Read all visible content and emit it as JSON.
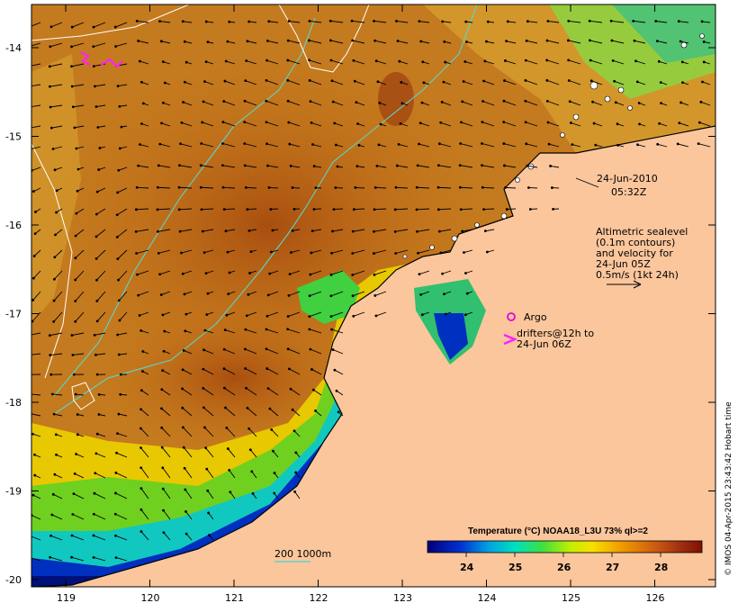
{
  "map": {
    "timestamp_date": "24-Jun-2010",
    "timestamp_time": "05:32Z",
    "description_lines": [
      "Altimetric sealevel",
      "(0.1m contours)",
      "and velocity for",
      "24-Jun 05Z",
      "0.5m/s (1kt 24h)"
    ],
    "argo_label": "Argo",
    "drifters_line1": "drifters@12h to",
    "drifters_line2": "24-Jun 06Z",
    "contour_label": "200  1000m",
    "colorbar_title": "Temperature (°C) NOAA18_L3U 73% ql>=2",
    "colorbar_ticks": [
      "24",
      "25",
      "26",
      "27",
      "28"
    ],
    "lat_ticks": [
      "-14",
      "-15",
      "-16",
      "-17",
      "-18",
      "-19",
      "-20"
    ],
    "lon_ticks": [
      "119",
      "120",
      "121",
      "122",
      "123",
      "124",
      "125",
      "126"
    ],
    "credit": "© IMOS 04-Apr-2015 23:43:42 Hobart time",
    "colors": {
      "land": "#fbc69c",
      "warm": "#b85c10",
      "cool": "#0a1a8c",
      "drifter": "#ff20ff",
      "contour": "#5cd4c8"
    }
  }
}
